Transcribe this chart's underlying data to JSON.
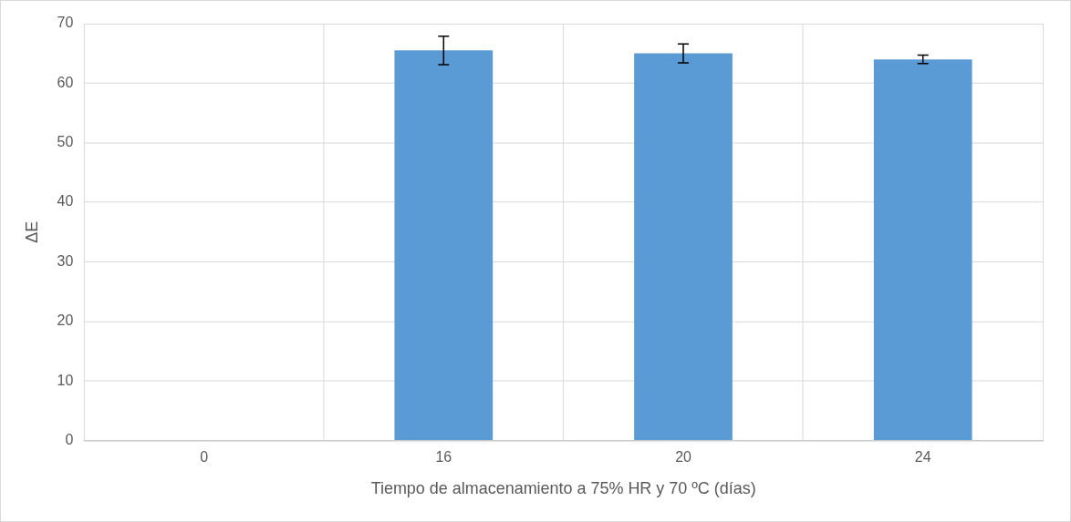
{
  "chart_data": {
    "type": "bar",
    "xlabel": "Tiempo de almacenamiento a 75% HR y 70 ºC (días)",
    "ylabel": "ΔE",
    "categories": [
      "0",
      "16",
      "20",
      "24"
    ],
    "values": [
      0,
      65.5,
      65.0,
      64.0
    ],
    "errors": [
      null,
      2.4,
      1.6,
      0.7
    ],
    "color": "#5b9bd5",
    "ylim": [
      0,
      70
    ],
    "yticks": [
      0,
      10,
      20,
      30,
      40,
      50,
      60,
      70
    ],
    "grid": true,
    "legend": false
  }
}
